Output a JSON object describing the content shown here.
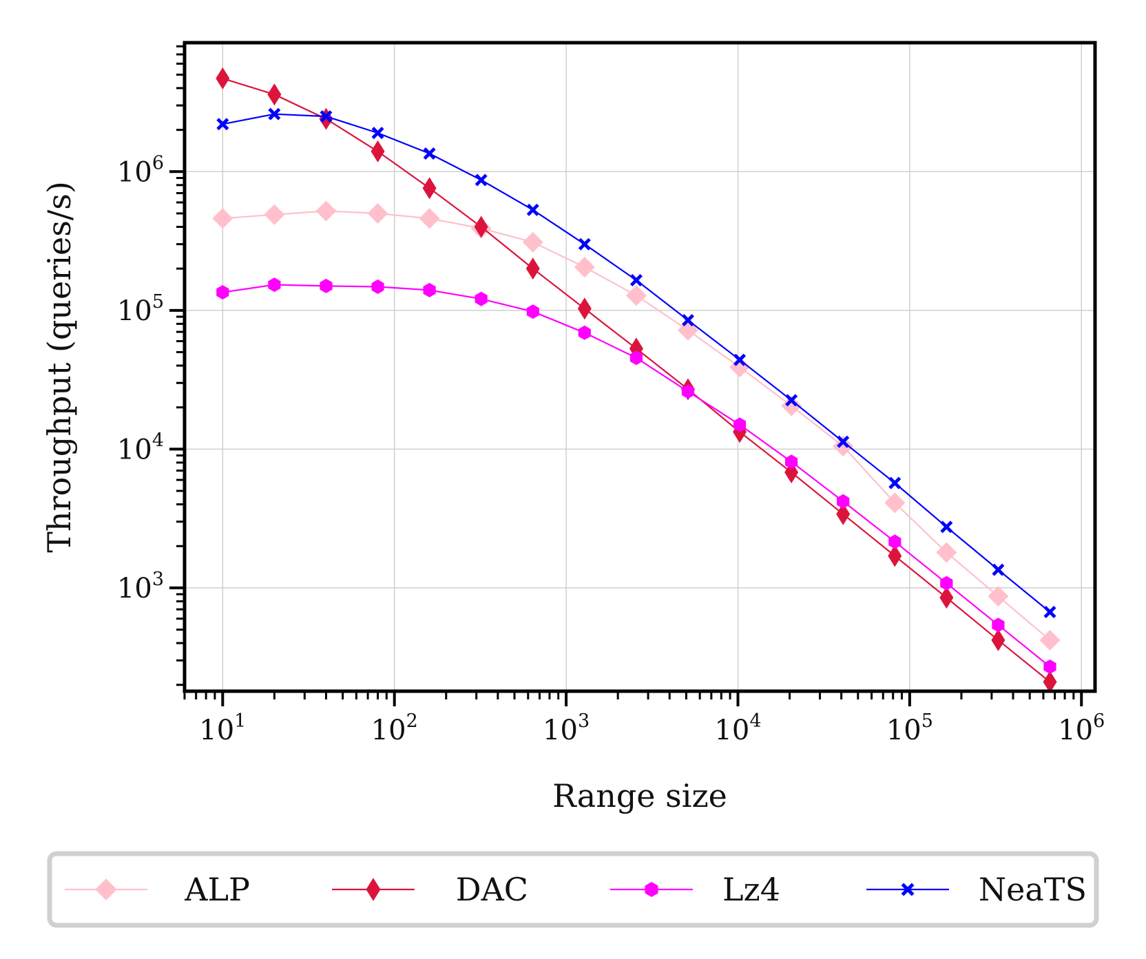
{
  "chart_data": {
    "type": "line",
    "xscale": "log",
    "yscale": "log",
    "xlabel": "Range size",
    "ylabel": "Throughput (queries/s)",
    "xlim": [
      6,
      1200000
    ],
    "ylim": [
      180,
      8500000
    ],
    "x": [
      10,
      20,
      40,
      80,
      160,
      320,
      640,
      1280,
      2560,
      5120,
      10240,
      20480,
      40960,
      81920,
      163840,
      327680,
      655360
    ],
    "x_ticks": [
      {
        "value": 10,
        "base": "10",
        "exp": "1"
      },
      {
        "value": 100,
        "base": "10",
        "exp": "2"
      },
      {
        "value": 1000,
        "base": "10",
        "exp": "3"
      },
      {
        "value": 10000,
        "base": "10",
        "exp": "4"
      },
      {
        "value": 100000,
        "base": "10",
        "exp": "5"
      },
      {
        "value": 1000000,
        "base": "10",
        "exp": "6"
      }
    ],
    "y_ticks": [
      {
        "value": 1000,
        "base": "10",
        "exp": "3"
      },
      {
        "value": 10000,
        "base": "10",
        "exp": "4"
      },
      {
        "value": 100000,
        "base": "10",
        "exp": "5"
      },
      {
        "value": 1000000,
        "base": "10",
        "exp": "6"
      }
    ],
    "grid": true,
    "legend_position": "bottom",
    "series": [
      {
        "name": "ALP",
        "color": "#ffc0cb",
        "marker": "diamond",
        "values": [
          460000,
          490000,
          520000,
          500000,
          460000,
          390000,
          310000,
          205000,
          128000,
          72000,
          39000,
          20500,
          10500,
          4100,
          1800,
          870,
          420
        ]
      },
      {
        "name": "DAC",
        "color": "#dc143c",
        "marker": "thin-diamond",
        "values": [
          4700000,
          3600000,
          2400000,
          1400000,
          760000,
          400000,
          200000,
          103000,
          53000,
          27000,
          13300,
          6800,
          3400,
          1700,
          850,
          420,
          210
        ]
      },
      {
        "name": "Lz4",
        "color": "#ff00ff",
        "marker": "hexagon",
        "values": [
          135000,
          153000,
          150000,
          148000,
          140000,
          121000,
          98000,
          69000,
          45500,
          26000,
          15000,
          8100,
          4200,
          2150,
          1080,
          540,
          270
        ]
      },
      {
        "name": "NeaTS",
        "color": "#0000ff",
        "marker": "x-filled",
        "values": [
          2200000,
          2600000,
          2500000,
          1900000,
          1350000,
          870000,
          530000,
          300000,
          165000,
          85000,
          44000,
          22500,
          11300,
          5700,
          2750,
          1350,
          670
        ]
      }
    ]
  }
}
